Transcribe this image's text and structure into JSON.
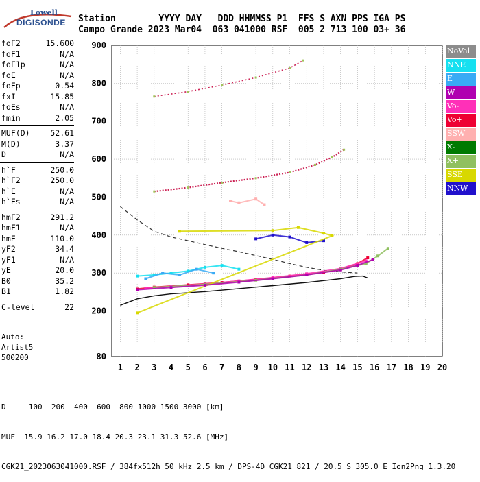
{
  "logo": {
    "line1": "Lowell",
    "line2": "DIGISONDE"
  },
  "header": {
    "row1": "Station        YYYY DAY   DDD HHMMSS P1  FFS S AXN PPS IGA PS",
    "row2": "Campo Grande 2023 Mar04  063 041000 RSF  005 2 713 100 03+ 36"
  },
  "params": {
    "g1": [
      {
        "k": "foF2",
        "v": "15.600"
      },
      {
        "k": "foF1",
        "v": "N/A"
      },
      {
        "k": "foF1p",
        "v": "N/A"
      },
      {
        "k": "foE",
        "v": "N/A"
      },
      {
        "k": "foEp",
        "v": "0.54"
      },
      {
        "k": "fxI",
        "v": "15.85"
      },
      {
        "k": "foEs",
        "v": "N/A"
      },
      {
        "k": "fmin",
        "v": "2.05"
      }
    ],
    "g2": [
      {
        "k": "MUF(D)",
        "v": "52.61"
      },
      {
        "k": "M(D)",
        "v": "3.37"
      },
      {
        "k": "D",
        "v": "N/A"
      }
    ],
    "g3": [
      {
        "k": "h`F",
        "v": "250.0"
      },
      {
        "k": "h`F2",
        "v": "250.0"
      },
      {
        "k": "h`E",
        "v": "N/A"
      },
      {
        "k": "h`Es",
        "v": "N/A"
      }
    ],
    "g4": [
      {
        "k": "hmF2",
        "v": "291.2"
      },
      {
        "k": "hmF1",
        "v": "N/A"
      },
      {
        "k": "hmE",
        "v": "110.0"
      },
      {
        "k": "yF2",
        "v": "34.4"
      },
      {
        "k": "yF1",
        "v": "N/A"
      },
      {
        "k": "yE",
        "v": "20.0"
      },
      {
        "k": "B0",
        "v": "35.2"
      },
      {
        "k": "B1",
        "v": "1.82"
      }
    ],
    "g5": [
      {
        "k": "C-level",
        "v": "22"
      }
    ]
  },
  "auto": {
    "line1": "Auto:",
    "line2": "Artist5",
    "line3": "500200"
  },
  "legend": [
    {
      "label": "NoVal",
      "color": "#8c8c8c"
    },
    {
      "label": "NNE",
      "color": "#16e0f0"
    },
    {
      "label": "E",
      "color": "#39aaf5"
    },
    {
      "label": "W",
      "color": "#b000b0"
    },
    {
      "label": "Vo-",
      "color": "#ff30b8"
    },
    {
      "label": "Vo+",
      "color": "#ee0033"
    },
    {
      "label": "SSW",
      "color": "#ffb0b0"
    },
    {
      "label": "X-",
      "color": "#007a00"
    },
    {
      "label": "X+",
      "color": "#90c060"
    },
    {
      "label": "SSE",
      "color": "#d8d800"
    },
    {
      "label": "NNW",
      "color": "#2010cc"
    }
  ],
  "bottom": {
    "line1": "D     100  200  400  600  800 1000 1500 3000 [km]",
    "line2": "MUF  15.9 16.2 17.0 18.4 20.3 23.1 31.3 52.6 [MHz]",
    "line3": "CGK21_2023063041000.RSF / 384fx512h 50 kHz 2.5 km / DPS-4D CGK21 821 / 20.5 S 305.0 E Ion2Png 1.3.20"
  },
  "chart_data": {
    "type": "scatter",
    "title": "",
    "xlabel": "",
    "ylabel": "",
    "xlim": [
      0.5,
      20
    ],
    "ylim": [
      80,
      900
    ],
    "x_ticks": [
      "1",
      "2",
      "3",
      "4",
      "5",
      "6",
      "7",
      "8",
      "9",
      "10",
      "11",
      "12",
      "13",
      "14",
      "15",
      "16",
      "17",
      "18",
      "19",
      "20"
    ],
    "y_ticks": [
      "80",
      "200",
      "300",
      "400",
      "500",
      "600",
      "700",
      "800",
      "900"
    ],
    "series": [
      {
        "name": "Vo+",
        "color": "#ee0033",
        "x": [
          2.0,
          3.0,
          4.0,
          5.0,
          6.0,
          7.0,
          8.0,
          9.0,
          10.0,
          11.0,
          12.0,
          13.0,
          14.0,
          15.0,
          15.6
        ],
        "y": [
          258,
          263,
          266,
          269,
          272,
          275,
          279,
          283,
          287,
          292,
          297,
          302,
          310,
          325,
          340
        ]
      },
      {
        "name": "Vo-",
        "color": "#ff30b8",
        "x": [
          2.5,
          4.0,
          6.0,
          8.0,
          10.0,
          12.0,
          14.0,
          15.5
        ],
        "y": [
          260,
          265,
          271,
          279,
          288,
          298,
          312,
          332
        ]
      },
      {
        "name": "X+",
        "color": "#90c060",
        "x": [
          3.0,
          6.0,
          9.0,
          12.0,
          14.0,
          15.5,
          16.2,
          16.8
        ],
        "y": [
          262,
          270,
          281,
          295,
          310,
          325,
          345,
          365
        ]
      },
      {
        "name": "NNE",
        "color": "#16e0f0",
        "x": [
          2.0,
          3.0,
          4.0,
          5.0,
          6.0,
          7.0,
          8.0
        ],
        "y": [
          292,
          295,
          300,
          305,
          315,
          320,
          310
        ]
      },
      {
        "name": "E",
        "color": "#39aaf5",
        "x": [
          2.5,
          3.5,
          4.5,
          5.5,
          6.5
        ],
        "y": [
          285,
          300,
          295,
          310,
          300
        ]
      },
      {
        "name": "NNW",
        "color": "#2010cc",
        "x": [
          9.0,
          10.0,
          11.0,
          12.0,
          13.0
        ],
        "y": [
          390,
          400,
          395,
          380,
          385
        ]
      },
      {
        "name": "SSE",
        "color": "#d8d800",
        "x": [
          4.5,
          10.0,
          11.5,
          13.0,
          13.5,
          2.0
        ],
        "y": [
          410,
          412,
          420,
          405,
          398,
          195
        ]
      },
      {
        "name": "SSW",
        "color": "#ffb0b0",
        "x": [
          7.5,
          8.0,
          9.0,
          9.5
        ],
        "y": [
          490,
          485,
          495,
          480
        ]
      },
      {
        "name": "W",
        "color": "#b000b0",
        "x": [
          2.0,
          4.0,
          6.0,
          8.0,
          10.0,
          12.0,
          14.0,
          15.0,
          15.9
        ],
        "y": [
          256,
          262,
          268,
          276,
          285,
          295,
          308,
          320,
          335
        ]
      }
    ],
    "second_hop": {
      "x": [
        3.0,
        5.0,
        7.0,
        9.0,
        11.0,
        12.5,
        13.5,
        14.2
      ],
      "y": [
        515,
        525,
        538,
        550,
        565,
        585,
        605,
        625
      ]
    },
    "third_hop": {
      "x": [
        3.0,
        5.0,
        7.0,
        9.0,
        11.0,
        11.8
      ],
      "y": [
        765,
        778,
        795,
        815,
        840,
        860
      ]
    },
    "profile_curve": {
      "x": [
        1.0,
        2.0,
        3.0,
        4.0,
        6.0,
        8.0,
        10.0,
        12.0,
        13.0,
        14.0,
        14.8,
        15.3,
        15.6
      ],
      "y": [
        215,
        232,
        240,
        245,
        251,
        259,
        267,
        275,
        280,
        285,
        291,
        292,
        287
      ]
    },
    "dashed_curve": {
      "x": [
        1.0,
        2.0,
        3.0,
        4.0,
        5.0,
        6.0,
        7.0,
        8.0,
        9.0,
        10.0,
        11.0,
        12.0,
        13.0,
        14.0,
        15.0
      ],
      "y": [
        475,
        440,
        410,
        395,
        385,
        375,
        365,
        356,
        346,
        336,
        325,
        315,
        307,
        303,
        300
      ]
    }
  }
}
